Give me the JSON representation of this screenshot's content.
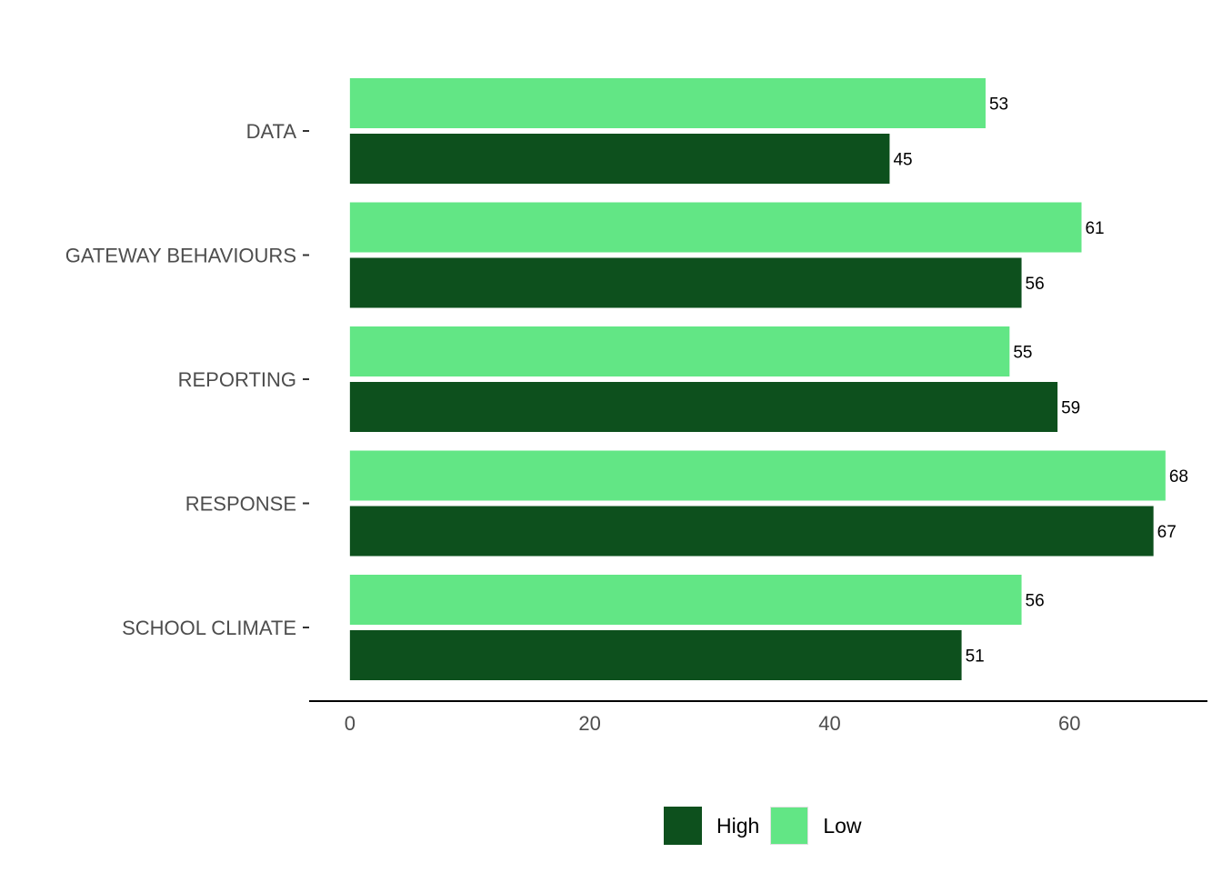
{
  "chart_data": {
    "type": "bar",
    "orientation": "horizontal",
    "categories": [
      "DATA",
      "GATEWAY BEHAVIOURS",
      "REPORTING",
      "RESPONSE",
      "SCHOOL CLIMATE"
    ],
    "series": [
      {
        "name": "Low",
        "color": "#62e685",
        "values": [
          53,
          61,
          55,
          68,
          56
        ]
      },
      {
        "name": "High",
        "color": "#0d501d",
        "values": [
          45,
          56,
          59,
          67,
          51
        ]
      }
    ],
    "x_ticks": [
      "0",
      "20",
      "40",
      "60"
    ],
    "xlim": [
      -3.4,
      71.5
    ],
    "xlabel": "",
    "ylabel": "",
    "grid": false,
    "legend_position": "bottom",
    "legend": [
      {
        "name": "High",
        "color": "#0d501d"
      },
      {
        "name": "Low",
        "color": "#62e685"
      }
    ]
  }
}
